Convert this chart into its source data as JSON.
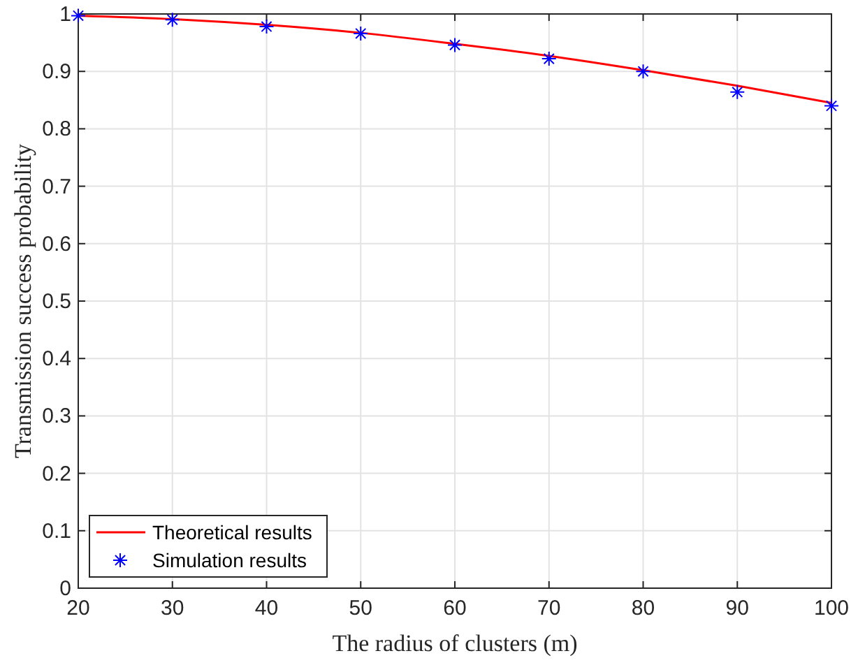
{
  "chart_data": {
    "type": "line",
    "xlabel": "The radius of clusters (m)",
    "ylabel": "Transmission success probability",
    "xlim": [
      20,
      100
    ],
    "xticks": [
      20,
      30,
      40,
      50,
      60,
      70,
      80,
      90,
      100
    ],
    "ylim": [
      0,
      1
    ],
    "yticks": [
      0,
      0.1,
      0.2,
      0.3,
      0.4,
      0.5,
      0.6,
      0.7,
      0.8,
      0.9,
      1
    ],
    "grid": true,
    "legend": "bottom left",
    "series": [
      {
        "name": "Theoretical results",
        "color": "#ff0000",
        "marker": "none",
        "x": [
          20,
          30,
          40,
          50,
          60,
          70,
          80,
          90,
          100
        ],
        "values": [
          0.997,
          0.991,
          0.981,
          0.967,
          0.948,
          0.927,
          0.902,
          0.875,
          0.845
        ]
      },
      {
        "name": "Simulation results",
        "type": "scatter",
        "color": "#0000ff",
        "marker": "cross",
        "x": [
          20,
          30,
          40,
          50,
          60,
          70,
          80,
          90,
          100
        ],
        "values": [
          0.997,
          0.99,
          0.978,
          0.966,
          0.946,
          0.922,
          0.9,
          0.864,
          0.84
        ]
      }
    ]
  }
}
